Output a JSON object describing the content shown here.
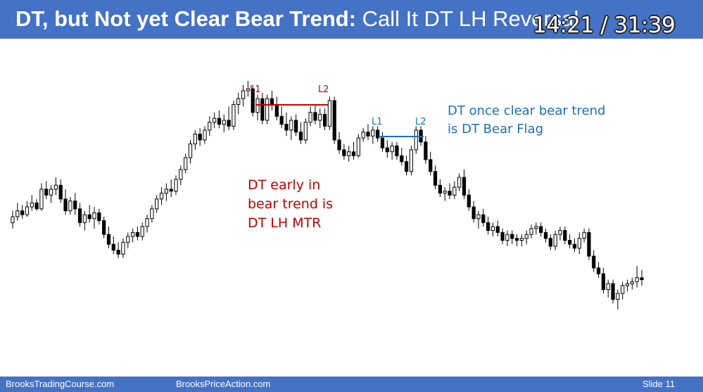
{
  "slide": {
    "title_bold": "DT, but Not yet Clear Bear Trend:",
    "title_regular": " Call It DT LH Reversal",
    "timer": "14:21 / 31:39",
    "footer_left": "BrooksTradingCourse.com",
    "footer_center": "BrooksPriceAction.com",
    "footer_right": "Slide  11"
  },
  "colors": {
    "header": "#4472c4",
    "red_annotation": "#c00000",
    "blue_annotation": "#1f6fb2"
  },
  "chart_data": {
    "type": "candlestick",
    "title": "",
    "xlabel": "",
    "ylabel": "",
    "grid": false,
    "ylim": [
      0,
      100
    ],
    "series": [
      {
        "values": [
          [
            38,
            44,
            35,
            41
          ],
          [
            41,
            48,
            39,
            44
          ],
          [
            44,
            47,
            40,
            42
          ],
          [
            42,
            49,
            41,
            46
          ],
          [
            46,
            52,
            44,
            48
          ],
          [
            48,
            50,
            44,
            45
          ],
          [
            45,
            58,
            44,
            55
          ],
          [
            55,
            59,
            50,
            52
          ],
          [
            52,
            57,
            48,
            55
          ],
          [
            55,
            61,
            52,
            57
          ],
          [
            57,
            60,
            48,
            50
          ],
          [
            50,
            55,
            42,
            44
          ],
          [
            44,
            51,
            42,
            49
          ],
          [
            49,
            53,
            42,
            45
          ],
          [
            45,
            48,
            36,
            38
          ],
          [
            38,
            44,
            34,
            42
          ],
          [
            42,
            47,
            38,
            40
          ],
          [
            40,
            46,
            35,
            43
          ],
          [
            43,
            45,
            37,
            39
          ],
          [
            39,
            41,
            30,
            32
          ],
          [
            32,
            36,
            25,
            27
          ],
          [
            27,
            31,
            22,
            24
          ],
          [
            24,
            28,
            20,
            22
          ],
          [
            22,
            30,
            20,
            28
          ],
          [
            28,
            33,
            25,
            31
          ],
          [
            31,
            35,
            28,
            33
          ],
          [
            33,
            36,
            29,
            31
          ],
          [
            31,
            38,
            29,
            36
          ],
          [
            36,
            42,
            33,
            40
          ],
          [
            40,
            47,
            38,
            45
          ],
          [
            45,
            52,
            43,
            50
          ],
          [
            50,
            56,
            47,
            53
          ],
          [
            53,
            58,
            49,
            55
          ],
          [
            55,
            60,
            51,
            54
          ],
          [
            54,
            62,
            52,
            60
          ],
          [
            60,
            67,
            57,
            65
          ],
          [
            65,
            73,
            63,
            71
          ],
          [
            71,
            80,
            68,
            78
          ],
          [
            78,
            85,
            75,
            83
          ],
          [
            83,
            86,
            77,
            80
          ],
          [
            80,
            87,
            78,
            85
          ],
          [
            85,
            92,
            82,
            89
          ],
          [
            89,
            94,
            86,
            91
          ],
          [
            91,
            95,
            86,
            88
          ],
          [
            88,
            93,
            84,
            90
          ],
          [
            90,
            97,
            85,
            87
          ],
          [
            87,
            100,
            85,
            98
          ],
          [
            98,
            104,
            93,
            101
          ],
          [
            101,
            108,
            97,
            105
          ],
          [
            105,
            110,
            102,
            106
          ],
          [
            106,
            108,
            92,
            94
          ],
          [
            94,
            103,
            90,
            101
          ],
          [
            101,
            104,
            88,
            90
          ],
          [
            90,
            103,
            88,
            101
          ],
          [
            101,
            105,
            95,
            98
          ],
          [
            98,
            102,
            90,
            92
          ],
          [
            92,
            97,
            86,
            88
          ],
          [
            88,
            94,
            82,
            85
          ],
          [
            85,
            92,
            80,
            90
          ],
          [
            90,
            93,
            82,
            84
          ],
          [
            84,
            89,
            78,
            80
          ],
          [
            80,
            91,
            78,
            89
          ],
          [
            89,
            97,
            87,
            94
          ],
          [
            94,
            98,
            88,
            90
          ],
          [
            90,
            96,
            86,
            93
          ],
          [
            93,
            96,
            85,
            87
          ],
          [
            87,
            102,
            85,
            100
          ],
          [
            100,
            102,
            78,
            80
          ],
          [
            80,
            84,
            73,
            75
          ],
          [
            75,
            78,
            70,
            72
          ],
          [
            72,
            77,
            69,
            74
          ],
          [
            74,
            79,
            70,
            72
          ],
          [
            72,
            83,
            71,
            81
          ],
          [
            81,
            86,
            79,
            84
          ],
          [
            84,
            88,
            80,
            82
          ],
          [
            82,
            87,
            78,
            85
          ],
          [
            85,
            87,
            79,
            81
          ],
          [
            81,
            84,
            74,
            76
          ],
          [
            76,
            80,
            71,
            74
          ],
          [
            74,
            79,
            70,
            77
          ],
          [
            77,
            79,
            70,
            72
          ],
          [
            72,
            76,
            67,
            69
          ],
          [
            69,
            72,
            62,
            64
          ],
          [
            64,
            77,
            62,
            75
          ],
          [
            75,
            87,
            73,
            85
          ],
          [
            85,
            87,
            77,
            79
          ],
          [
            79,
            82,
            68,
            70
          ],
          [
            70,
            74,
            62,
            64
          ],
          [
            64,
            67,
            55,
            57
          ],
          [
            57,
            60,
            51,
            53
          ],
          [
            53,
            56,
            49,
            54
          ],
          [
            54,
            58,
            50,
            52
          ],
          [
            52,
            59,
            50,
            56
          ],
          [
            56,
            63,
            54,
            61
          ],
          [
            61,
            65,
            50,
            52
          ],
          [
            52,
            55,
            44,
            46
          ],
          [
            46,
            49,
            38,
            40
          ],
          [
            40,
            44,
            35,
            42
          ],
          [
            42,
            45,
            36,
            38
          ],
          [
            38,
            41,
            32,
            34
          ],
          [
            34,
            38,
            31,
            36
          ],
          [
            36,
            39,
            31,
            33
          ],
          [
            33,
            35,
            27,
            29
          ],
          [
            29,
            34,
            26,
            32
          ],
          [
            32,
            34,
            27,
            30
          ],
          [
            30,
            32,
            26,
            29
          ],
          [
            29,
            32,
            26,
            30
          ],
          [
            30,
            34,
            27,
            32
          ],
          [
            32,
            37,
            30,
            35
          ],
          [
            35,
            38,
            32,
            36
          ],
          [
            36,
            38,
            31,
            33
          ],
          [
            33,
            35,
            28,
            30
          ],
          [
            30,
            32,
            24,
            26
          ],
          [
            26,
            34,
            24,
            32
          ],
          [
            32,
            36,
            29,
            34
          ],
          [
            34,
            36,
            27,
            29
          ],
          [
            29,
            32,
            25,
            27
          ],
          [
            27,
            30,
            23,
            25
          ],
          [
            25,
            33,
            22,
            30
          ],
          [
            30,
            35,
            28,
            33
          ],
          [
            33,
            35,
            19,
            21
          ],
          [
            21,
            24,
            13,
            15
          ],
          [
            15,
            18,
            10,
            12
          ],
          [
            12,
            15,
            2,
            4
          ],
          [
            4,
            9,
            0,
            7
          ],
          [
            7,
            9,
            -3,
            -1
          ],
          [
            -1,
            4,
            -6,
            2
          ],
          [
            2,
            8,
            -1,
            6
          ],
          [
            6,
            9,
            3,
            7
          ],
          [
            7,
            10,
            4,
            8
          ],
          [
            8,
            16,
            5,
            10
          ],
          [
            10,
            14,
            6,
            9
          ]
        ]
      }
    ],
    "annotations": [
      {
        "text": "L1",
        "color": "#c00000"
      },
      {
        "text": "L2",
        "color": "#c00000"
      },
      {
        "text": "DT early in",
        "color": "#c00000"
      },
      {
        "text": "bear trend is",
        "color": "#c00000"
      },
      {
        "text": "DT LH MTR",
        "color": "#c00000"
      },
      {
        "text": "L1",
        "color": "#1f6fb2"
      },
      {
        "text": "L2",
        "color": "#1f6fb2"
      },
      {
        "text": "DT once clear bear trend",
        "color": "#1f6fb2"
      },
      {
        "text": "is DT Bear Flag",
        "color": "#1f6fb2"
      }
    ]
  }
}
